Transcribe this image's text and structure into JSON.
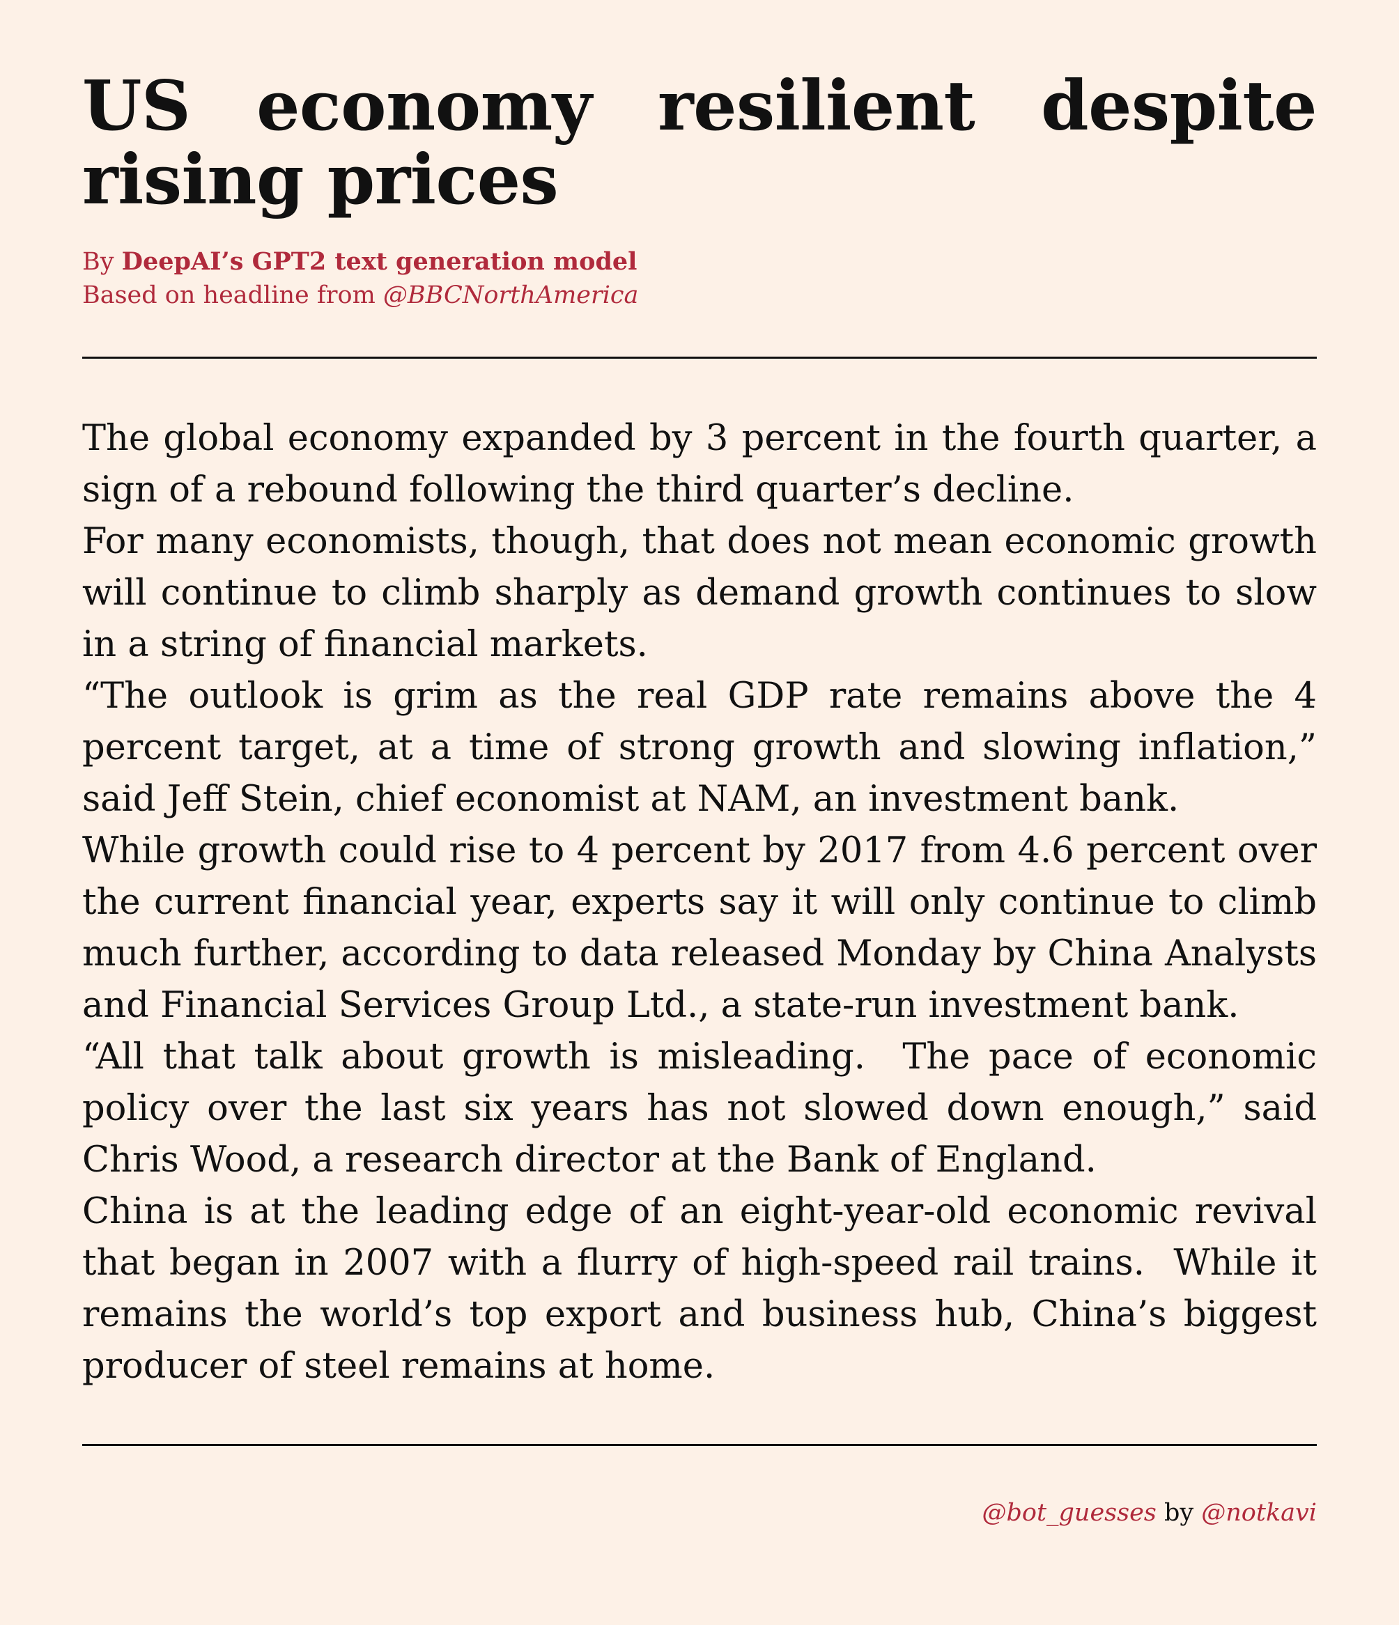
{
  "headline": "US economy resilient despite rising prices",
  "byline": {
    "by_prefix": "By",
    "author": "DeepAI’s GPT2 text generation model",
    "source_prefix": "Based on headline from",
    "source_handle": "@BBCNorthAmerica"
  },
  "article": {
    "paragraphs": [
      "The global economy expanded by 3 percent in the fourth quarter, a sign of a rebound following the third quarter’s decline.",
      "For many economists, though, that does not mean economic growth will continue to climb sharply as demand growth continues to slow in a string of financial markets.",
      "“The outlook is grim as the real GDP rate remains above the 4 percent target, at a time of strong growth and slowing inflation,” said Jeff Stein, chief economist at NAM, an investment bank.",
      "While growth could rise to 4 percent by 2017 from 4.6 percent over the current financial year, experts say it will only continue to climb much further, according to data released Monday by China Analysts and Financial Services Group Ltd., a state-run investment bank.",
      "“All that talk about growth is misleading.  The pace of economic policy over the last six years has not slowed down enough,” said Chris Wood, a research director at the Bank of England.",
      "China is at the leading edge of an eight-year-old economic revival that began in 2007 with a flurry of high-speed rail trains.  While it remains the world’s top export and business hub, China’s biggest producer of steel remains at home."
    ]
  },
  "footer": {
    "bot_handle": "@bot_guesses",
    "by_word": "by",
    "creator_handle": "@notkavi"
  },
  "colors": {
    "background": "#fdf1e7",
    "text": "#111111",
    "accent": "#b02a3c"
  }
}
